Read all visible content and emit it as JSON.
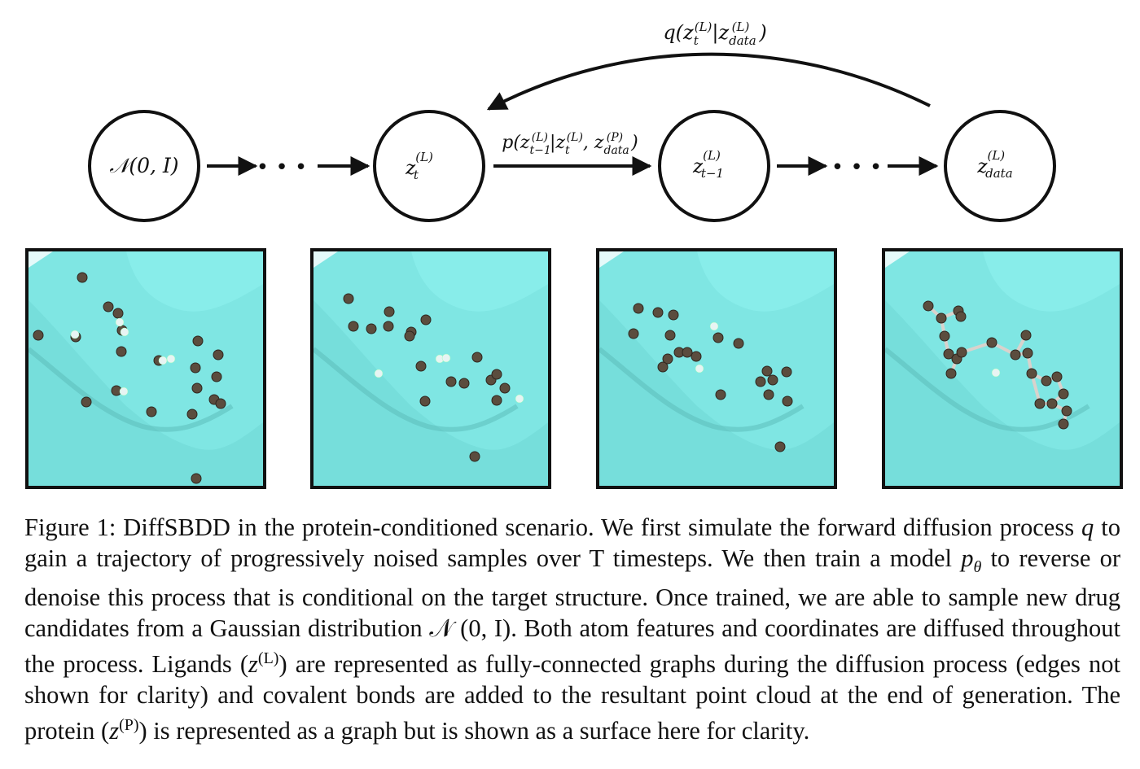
{
  "diagram": {
    "nodes": [
      {
        "label": "𝒩(0, I)"
      },
      {
        "label": "z",
        "sup": "(L)",
        "sub": "t"
      },
      {
        "label": "z",
        "sup": "(L)",
        "sub": "t−1"
      },
      {
        "label": "z",
        "sup": "(L)",
        "sub": "data"
      }
    ],
    "ellipsis": "• • •",
    "reverse_label": "p(z(L)t−1|z(L)t, z(P)data)",
    "forward_label": "q(z(L)t|z(L)data)"
  },
  "panels": [
    {
      "name": "noise-panel",
      "bonds_shown": false
    },
    {
      "name": "timestep-t-panel",
      "bonds_shown": false
    },
    {
      "name": "timestep-t-minus-1-panel",
      "bonds_shown": false
    },
    {
      "name": "data-panel",
      "bonds_shown": true
    }
  ],
  "colors": {
    "protein_surface": "#7fe6e3",
    "heavy_atom": "#5b4d3e",
    "hydrogen_atom": "#e8f4f3",
    "bond": "#d9d2cc"
  },
  "caption": {
    "lead": "Figure 1: DiffSBDD in the protein-conditioned scenario. We first simulate the forward diffusion process ",
    "q": "q",
    "t1": " to gain a trajectory of progressively noised samples over T timesteps. We then train a model ",
    "p": "p",
    "theta": "θ",
    "t2": " to reverse or denoise this process that is conditional on the target structure. Once trained, we are able to sample new drug candidates from a Gaussian distribution ",
    "normal": "𝒩 (0, I)",
    "t3": ". Both atom features and coordinates are diffused throughout the process. Ligands (",
    "zl": "z",
    "zl_sup": "(L)",
    "t4": ") are represented as fully-connected graphs during the diffusion process (edges not shown for clarity) and covalent bonds are added to the resultant point cloud at the end of generation. The protein (",
    "zp": "z",
    "zp_sup": "(P)",
    "t5": ") is represented as a graph but is shown as a surface here for clarity."
  }
}
